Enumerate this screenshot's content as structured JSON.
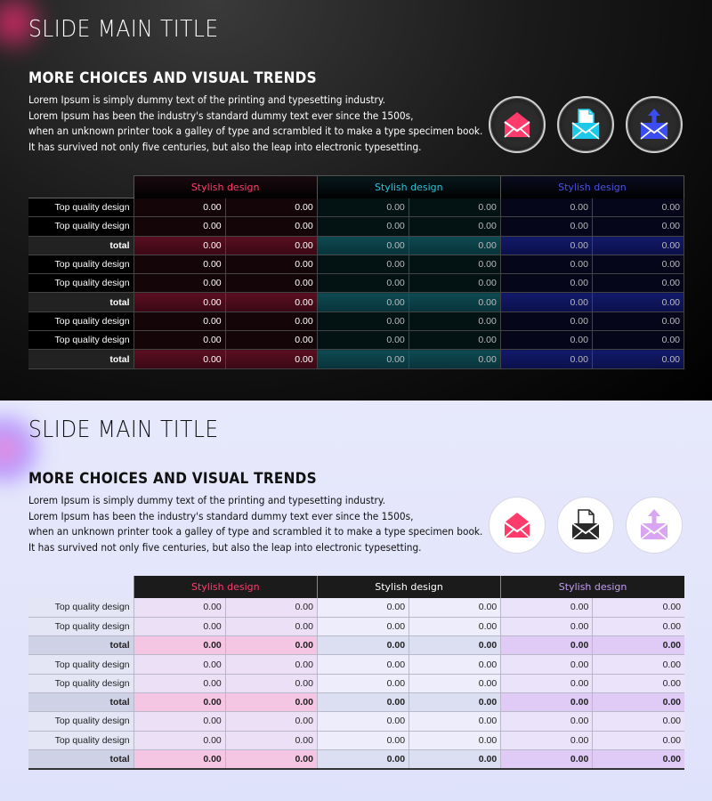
{
  "slides": [
    {
      "theme": "dark",
      "title": "SLIDE MAIN TITLE",
      "subtitle": "MORE CHOICES AND VISUAL TRENDS",
      "body_lines": [
        "Lorem Ipsum is simply dummy text of the printing and typesetting industry.",
        "Lorem Ipsum has been the industry's standard dummy text ever since the 1500s,",
        "when an unknown printer took a galley of type and scrambled it to make a type specimen book.",
        "It has survived not only five centuries, but also the leap into electronic typesetting."
      ],
      "icons": [
        {
          "name": "open-envelope-icon",
          "color": "#ff3b6b"
        },
        {
          "name": "envelope-document-icon",
          "color": "#1ec8e8"
        },
        {
          "name": "envelope-upload-icon",
          "color": "#3b4cf0"
        }
      ],
      "table": {
        "headers": [
          "Stylish design",
          "Stylish design",
          "Stylish design"
        ],
        "rows": [
          {
            "label": "Top quality design",
            "total": false,
            "values": [
              "0.00",
              "0.00",
              "0.00",
              "0.00",
              "0.00",
              "0.00"
            ]
          },
          {
            "label": "Top quality design",
            "total": false,
            "values": [
              "0.00",
              "0.00",
              "0.00",
              "0.00",
              "0.00",
              "0.00"
            ]
          },
          {
            "label": "total",
            "total": true,
            "values": [
              "0.00",
              "0.00",
              "0.00",
              "0.00",
              "0.00",
              "0.00"
            ]
          },
          {
            "label": "Top quality design",
            "total": false,
            "values": [
              "0.00",
              "0.00",
              "0.00",
              "0.00",
              "0.00",
              "0.00"
            ]
          },
          {
            "label": "Top quality design",
            "total": false,
            "values": [
              "0.00",
              "0.00",
              "0.00",
              "0.00",
              "0.00",
              "0.00"
            ]
          },
          {
            "label": "total",
            "total": true,
            "values": [
              "0.00",
              "0.00",
              "0.00",
              "0.00",
              "0.00",
              "0.00"
            ]
          },
          {
            "label": "Top quality design",
            "total": false,
            "values": [
              "0.00",
              "0.00",
              "0.00",
              "0.00",
              "0.00",
              "0.00"
            ]
          },
          {
            "label": "Top quality design",
            "total": false,
            "values": [
              "0.00",
              "0.00",
              "0.00",
              "0.00",
              "0.00",
              "0.00"
            ]
          },
          {
            "label": "total",
            "total": true,
            "values": [
              "0.00",
              "0.00",
              "0.00",
              "0.00",
              "0.00",
              "0.00"
            ]
          }
        ]
      }
    },
    {
      "theme": "light",
      "title": "SLIDE MAIN TITLE",
      "subtitle": "MORE CHOICES AND VISUAL TRENDS",
      "body_lines": [
        "Lorem Ipsum is simply dummy text of the printing and typesetting industry.",
        "Lorem Ipsum has been the industry's standard dummy text ever since the 1500s,",
        "when an unknown printer took a galley of type and scrambled it to make a type specimen book.",
        "It has survived not only five centuries, but also the leap into electronic typesetting."
      ],
      "icons": [
        {
          "name": "open-envelope-icon",
          "color": "#ff3b6b"
        },
        {
          "name": "envelope-document-icon",
          "color": "#2a2a2a"
        },
        {
          "name": "envelope-upload-icon",
          "color": "#d9a4f2"
        }
      ],
      "table": {
        "headers": [
          "Stylish design",
          "Stylish design",
          "Stylish design"
        ],
        "rows": [
          {
            "label": "Top quality design",
            "total": false,
            "values": [
              "0.00",
              "0.00",
              "0.00",
              "0.00",
              "0.00",
              "0.00"
            ]
          },
          {
            "label": "Top quality design",
            "total": false,
            "values": [
              "0.00",
              "0.00",
              "0.00",
              "0.00",
              "0.00",
              "0.00"
            ]
          },
          {
            "label": "total",
            "total": true,
            "values": [
              "0.00",
              "0.00",
              "0.00",
              "0.00",
              "0.00",
              "0.00"
            ]
          },
          {
            "label": "Top quality design",
            "total": false,
            "values": [
              "0.00",
              "0.00",
              "0.00",
              "0.00",
              "0.00",
              "0.00"
            ]
          },
          {
            "label": "Top quality design",
            "total": false,
            "values": [
              "0.00",
              "0.00",
              "0.00",
              "0.00",
              "0.00",
              "0.00"
            ]
          },
          {
            "label": "total",
            "total": true,
            "values": [
              "0.00",
              "0.00",
              "0.00",
              "0.00",
              "0.00",
              "0.00"
            ]
          },
          {
            "label": "Top quality design",
            "total": false,
            "values": [
              "0.00",
              "0.00",
              "0.00",
              "0.00",
              "0.00",
              "0.00"
            ]
          },
          {
            "label": "Top quality design",
            "total": false,
            "values": [
              "0.00",
              "0.00",
              "0.00",
              "0.00",
              "0.00",
              "0.00"
            ]
          },
          {
            "label": "total",
            "total": true,
            "values": [
              "0.00",
              "0.00",
              "0.00",
              "0.00",
              "0.00",
              "0.00"
            ]
          }
        ]
      }
    }
  ]
}
